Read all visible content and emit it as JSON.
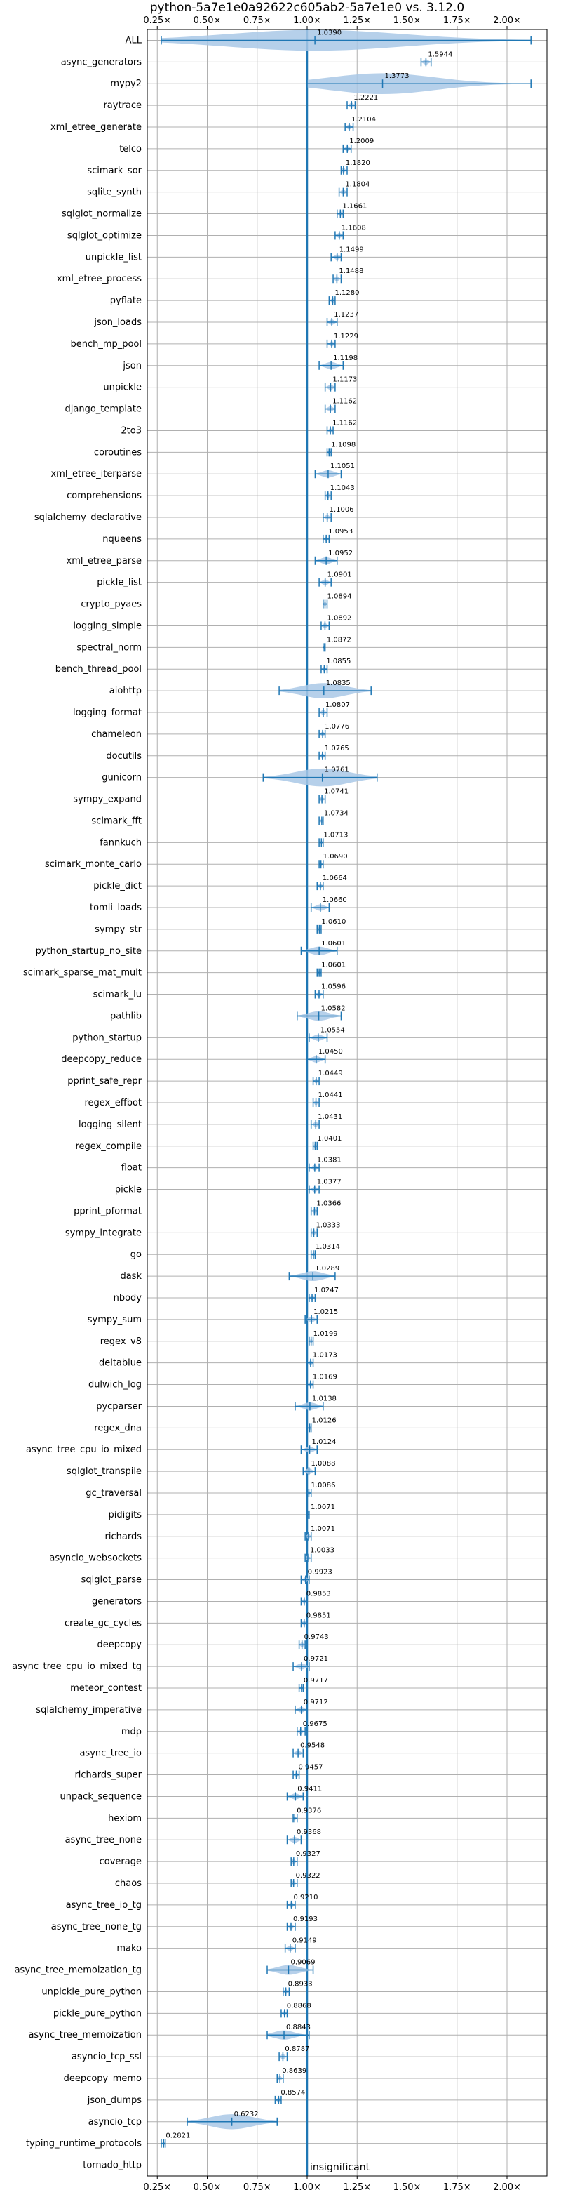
{
  "chart_data": {
    "type": "violin",
    "title": "python-5a7e1e0a92622c605ab2-5a7e1e0 vs. 3.12.0",
    "xlim": [
      0.2,
      2.2
    ],
    "x_ticks": [
      0.25,
      0.5,
      0.75,
      1.0,
      1.25,
      1.5,
      1.75,
      2.0
    ],
    "x_tick_labels": [
      "0.25×",
      "0.50×",
      "0.75×",
      "1.00×",
      "1.25×",
      "1.50×",
      "1.75×",
      "2.00×"
    ],
    "reference_line": 1.0,
    "annotation": "insignificant",
    "grid": true,
    "benchmarks": [
      {
        "name": "ALL",
        "value": 1.039,
        "label": "1.0390",
        "min": 0.27,
        "max": 2.12
      },
      {
        "name": "async_generators",
        "value": 1.5944,
        "label": "1.5944",
        "min": 1.57,
        "max": 1.62
      },
      {
        "name": "mypy2",
        "value": 1.3773,
        "label": "1.3773",
        "min": 1.0,
        "max": 2.12
      },
      {
        "name": "raytrace",
        "value": 1.2221,
        "label": "1.2221",
        "min": 1.2,
        "max": 1.24
      },
      {
        "name": "xml_etree_generate",
        "value": 1.2104,
        "label": "1.2104",
        "min": 1.19,
        "max": 1.23
      },
      {
        "name": "telco",
        "value": 1.2009,
        "label": "1.2009",
        "min": 1.18,
        "max": 1.22
      },
      {
        "name": "scimark_sor",
        "value": 1.182,
        "label": "1.1820",
        "min": 1.17,
        "max": 1.2
      },
      {
        "name": "sqlite_synth",
        "value": 1.1804,
        "label": "1.1804",
        "min": 1.16,
        "max": 1.2
      },
      {
        "name": "sqlglot_normalize",
        "value": 1.1661,
        "label": "1.1661",
        "min": 1.15,
        "max": 1.18
      },
      {
        "name": "sqlglot_optimize",
        "value": 1.1608,
        "label": "1.1608",
        "min": 1.14,
        "max": 1.18
      },
      {
        "name": "unpickle_list",
        "value": 1.1499,
        "label": "1.1499",
        "min": 1.12,
        "max": 1.17
      },
      {
        "name": "xml_etree_process",
        "value": 1.1488,
        "label": "1.1488",
        "min": 1.13,
        "max": 1.17
      },
      {
        "name": "pyflate",
        "value": 1.128,
        "label": "1.1280",
        "min": 1.11,
        "max": 1.14
      },
      {
        "name": "json_loads",
        "value": 1.1237,
        "label": "1.1237",
        "min": 1.1,
        "max": 1.15
      },
      {
        "name": "bench_mp_pool",
        "value": 1.1229,
        "label": "1.1229",
        "min": 1.1,
        "max": 1.14
      },
      {
        "name": "json",
        "value": 1.1198,
        "label": "1.1198",
        "min": 1.06,
        "max": 1.18
      },
      {
        "name": "unpickle",
        "value": 1.1173,
        "label": "1.1173",
        "min": 1.09,
        "max": 1.14
      },
      {
        "name": "django_template",
        "value": 1.1162,
        "label": "1.1162",
        "min": 1.09,
        "max": 1.14
      },
      {
        "name": "2to3",
        "value": 1.1162,
        "label": "1.1162",
        "min": 1.1,
        "max": 1.13
      },
      {
        "name": "coroutines",
        "value": 1.1098,
        "label": "1.1098",
        "min": 1.1,
        "max": 1.12
      },
      {
        "name": "xml_etree_iterparse",
        "value": 1.1051,
        "label": "1.1051",
        "min": 1.04,
        "max": 1.17
      },
      {
        "name": "comprehensions",
        "value": 1.1043,
        "label": "1.1043",
        "min": 1.09,
        "max": 1.12
      },
      {
        "name": "sqlalchemy_declarative",
        "value": 1.1006,
        "label": "1.1006",
        "min": 1.08,
        "max": 1.12
      },
      {
        "name": "nqueens",
        "value": 1.0953,
        "label": "1.0953",
        "min": 1.08,
        "max": 1.11
      },
      {
        "name": "xml_etree_parse",
        "value": 1.0952,
        "label": "1.0952",
        "min": 1.04,
        "max": 1.15
      },
      {
        "name": "pickle_list",
        "value": 1.0901,
        "label": "1.0901",
        "min": 1.06,
        "max": 1.12
      },
      {
        "name": "crypto_pyaes",
        "value": 1.0894,
        "label": "1.0894",
        "min": 1.08,
        "max": 1.1
      },
      {
        "name": "logging_simple",
        "value": 1.0892,
        "label": "1.0892",
        "min": 1.07,
        "max": 1.11
      },
      {
        "name": "spectral_norm",
        "value": 1.0872,
        "label": "1.0872",
        "min": 1.08,
        "max": 1.09
      },
      {
        "name": "bench_thread_pool",
        "value": 1.0855,
        "label": "1.0855",
        "min": 1.07,
        "max": 1.1
      },
      {
        "name": "aiohttp",
        "value": 1.0835,
        "label": "1.0835",
        "min": 0.86,
        "max": 1.32
      },
      {
        "name": "logging_format",
        "value": 1.0807,
        "label": "1.0807",
        "min": 1.06,
        "max": 1.1
      },
      {
        "name": "chameleon",
        "value": 1.0776,
        "label": "1.0776",
        "min": 1.06,
        "max": 1.09
      },
      {
        "name": "docutils",
        "value": 1.0765,
        "label": "1.0765",
        "min": 1.06,
        "max": 1.09
      },
      {
        "name": "gunicorn",
        "value": 1.0761,
        "label": "1.0761",
        "min": 0.78,
        "max": 1.35
      },
      {
        "name": "sympy_expand",
        "value": 1.0741,
        "label": "1.0741",
        "min": 1.06,
        "max": 1.09
      },
      {
        "name": "scimark_fft",
        "value": 1.0734,
        "label": "1.0734",
        "min": 1.06,
        "max": 1.08
      },
      {
        "name": "fannkuch",
        "value": 1.0713,
        "label": "1.0713",
        "min": 1.06,
        "max": 1.08
      },
      {
        "name": "scimark_monte_carlo",
        "value": 1.069,
        "label": "1.0690",
        "min": 1.06,
        "max": 1.08
      },
      {
        "name": "pickle_dict",
        "value": 1.0664,
        "label": "1.0664",
        "min": 1.05,
        "max": 1.08
      },
      {
        "name": "tomli_loads",
        "value": 1.066,
        "label": "1.0660",
        "min": 1.02,
        "max": 1.11
      },
      {
        "name": "sympy_str",
        "value": 1.061,
        "label": "1.0610",
        "min": 1.05,
        "max": 1.07
      },
      {
        "name": "python_startup_no_site",
        "value": 1.0601,
        "label": "1.0601",
        "min": 0.97,
        "max": 1.15
      },
      {
        "name": "scimark_sparse_mat_mult",
        "value": 1.0601,
        "label": "1.0601",
        "min": 1.05,
        "max": 1.07
      },
      {
        "name": "scimark_lu",
        "value": 1.0596,
        "label": "1.0596",
        "min": 1.04,
        "max": 1.08
      },
      {
        "name": "pathlib",
        "value": 1.0582,
        "label": "1.0582",
        "min": 0.95,
        "max": 1.17
      },
      {
        "name": "python_startup",
        "value": 1.0554,
        "label": "1.0554",
        "min": 1.01,
        "max": 1.1
      },
      {
        "name": "deepcopy_reduce",
        "value": 1.045,
        "label": "1.0450",
        "min": 1.0,
        "max": 1.09
      },
      {
        "name": "pprint_safe_repr",
        "value": 1.0449,
        "label": "1.0449",
        "min": 1.03,
        "max": 1.06
      },
      {
        "name": "regex_effbot",
        "value": 1.0441,
        "label": "1.0441",
        "min": 1.03,
        "max": 1.06
      },
      {
        "name": "logging_silent",
        "value": 1.0431,
        "label": "1.0431",
        "min": 1.02,
        "max": 1.06
      },
      {
        "name": "regex_compile",
        "value": 1.0401,
        "label": "1.0401",
        "min": 1.03,
        "max": 1.05
      },
      {
        "name": "float",
        "value": 1.0381,
        "label": "1.0381",
        "min": 1.01,
        "max": 1.06
      },
      {
        "name": "pickle",
        "value": 1.0377,
        "label": "1.0377",
        "min": 1.01,
        "max": 1.06
      },
      {
        "name": "pprint_pformat",
        "value": 1.0366,
        "label": "1.0366",
        "min": 1.02,
        "max": 1.05
      },
      {
        "name": "sympy_integrate",
        "value": 1.0333,
        "label": "1.0333",
        "min": 1.02,
        "max": 1.05
      },
      {
        "name": "go",
        "value": 1.0314,
        "label": "1.0314",
        "min": 1.02,
        "max": 1.04
      },
      {
        "name": "dask",
        "value": 1.0289,
        "label": "1.0289",
        "min": 0.91,
        "max": 1.14
      },
      {
        "name": "nbody",
        "value": 1.0247,
        "label": "1.0247",
        "min": 1.01,
        "max": 1.04
      },
      {
        "name": "sympy_sum",
        "value": 1.0215,
        "label": "1.0215",
        "min": 0.99,
        "max": 1.05
      },
      {
        "name": "regex_v8",
        "value": 1.0199,
        "label": "1.0199",
        "min": 1.01,
        "max": 1.03
      },
      {
        "name": "deltablue",
        "value": 1.0173,
        "label": "1.0173",
        "min": 1.0,
        "max": 1.03
      },
      {
        "name": "dulwich_log",
        "value": 1.0169,
        "label": "1.0169",
        "min": 1.0,
        "max": 1.03
      },
      {
        "name": "pycparser",
        "value": 1.0138,
        "label": "1.0138",
        "min": 0.94,
        "max": 1.08
      },
      {
        "name": "regex_dna",
        "value": 1.0126,
        "label": "1.0126",
        "min": 1.0,
        "max": 1.02
      },
      {
        "name": "async_tree_cpu_io_mixed",
        "value": 1.0124,
        "label": "1.0124",
        "min": 0.97,
        "max": 1.05
      },
      {
        "name": "sqlglot_transpile",
        "value": 1.0088,
        "label": "1.0088",
        "min": 0.98,
        "max": 1.04
      },
      {
        "name": "gc_traversal",
        "value": 1.0086,
        "label": "1.0086",
        "min": 1.0,
        "max": 1.02
      },
      {
        "name": "pidigits",
        "value": 1.0071,
        "label": "1.0071",
        "min": 1.0,
        "max": 1.01
      },
      {
        "name": "richards",
        "value": 1.0071,
        "label": "1.0071",
        "min": 0.99,
        "max": 1.02
      },
      {
        "name": "asyncio_websockets",
        "value": 1.0033,
        "label": "1.0033",
        "min": 0.99,
        "max": 1.02
      },
      {
        "name": "sqlglot_parse",
        "value": 0.9923,
        "label": "0.9923",
        "min": 0.97,
        "max": 1.01
      },
      {
        "name": "generators",
        "value": 0.9853,
        "label": "0.9853",
        "min": 0.97,
        "max": 1.0
      },
      {
        "name": "create_gc_cycles",
        "value": 0.9851,
        "label": "0.9851",
        "min": 0.97,
        "max": 1.0
      },
      {
        "name": "deepcopy",
        "value": 0.9743,
        "label": "0.9743",
        "min": 0.96,
        "max": 0.99
      },
      {
        "name": "async_tree_cpu_io_mixed_tg",
        "value": 0.9721,
        "label": "0.9721",
        "min": 0.93,
        "max": 1.01
      },
      {
        "name": "meteor_contest",
        "value": 0.9717,
        "label": "0.9717",
        "min": 0.96,
        "max": 0.98
      },
      {
        "name": "sqlalchemy_imperative",
        "value": 0.9712,
        "label": "0.9712",
        "min": 0.94,
        "max": 1.0
      },
      {
        "name": "mdp",
        "value": 0.9675,
        "label": "0.9675",
        "min": 0.95,
        "max": 0.99
      },
      {
        "name": "async_tree_io",
        "value": 0.9548,
        "label": "0.9548",
        "min": 0.93,
        "max": 0.98
      },
      {
        "name": "richards_super",
        "value": 0.9457,
        "label": "0.9457",
        "min": 0.93,
        "max": 0.96
      },
      {
        "name": "unpack_sequence",
        "value": 0.9411,
        "label": "0.9411",
        "min": 0.9,
        "max": 0.98
      },
      {
        "name": "hexiom",
        "value": 0.9376,
        "label": "0.9376",
        "min": 0.93,
        "max": 0.95
      },
      {
        "name": "async_tree_none",
        "value": 0.9368,
        "label": "0.9368",
        "min": 0.9,
        "max": 0.97
      },
      {
        "name": "coverage",
        "value": 0.9327,
        "label": "0.9327",
        "min": 0.92,
        "max": 0.95
      },
      {
        "name": "chaos",
        "value": 0.9322,
        "label": "0.9322",
        "min": 0.92,
        "max": 0.95
      },
      {
        "name": "async_tree_io_tg",
        "value": 0.921,
        "label": "0.9210",
        "min": 0.9,
        "max": 0.94
      },
      {
        "name": "async_tree_none_tg",
        "value": 0.9193,
        "label": "0.9193",
        "min": 0.9,
        "max": 0.94
      },
      {
        "name": "mako",
        "value": 0.9149,
        "label": "0.9149",
        "min": 0.89,
        "max": 0.94
      },
      {
        "name": "async_tree_memoization_tg",
        "value": 0.9069,
        "label": "0.9069",
        "min": 0.8,
        "max": 1.03
      },
      {
        "name": "unpickle_pure_python",
        "value": 0.8933,
        "label": "0.8933",
        "min": 0.88,
        "max": 0.91
      },
      {
        "name": "pickle_pure_python",
        "value": 0.8868,
        "label": "0.8868",
        "min": 0.87,
        "max": 0.9
      },
      {
        "name": "async_tree_memoization",
        "value": 0.8843,
        "label": "0.8843",
        "min": 0.8,
        "max": 1.01
      },
      {
        "name": "asyncio_tcp_ssl",
        "value": 0.8787,
        "label": "0.8787",
        "min": 0.86,
        "max": 0.9
      },
      {
        "name": "deepcopy_memo",
        "value": 0.8639,
        "label": "0.8639",
        "min": 0.85,
        "max": 0.88
      },
      {
        "name": "json_dumps",
        "value": 0.8574,
        "label": "0.8574",
        "min": 0.84,
        "max": 0.87
      },
      {
        "name": "asyncio_tcp",
        "value": 0.6232,
        "label": "0.6232",
        "min": 0.4,
        "max": 0.85
      },
      {
        "name": "typing_runtime_protocols",
        "value": 0.2821,
        "label": "0.2821",
        "min": 0.27,
        "max": 0.29
      },
      {
        "name": "tornado_http",
        "value": null,
        "label": "",
        "min": null,
        "max": null
      }
    ]
  },
  "colors": {
    "violin_fill": "#a9c8e6",
    "violin_stroke": "#1f77b4",
    "reference_line": "#1f77b4",
    "grid": "#b0b0b0",
    "axis": "#000000"
  }
}
